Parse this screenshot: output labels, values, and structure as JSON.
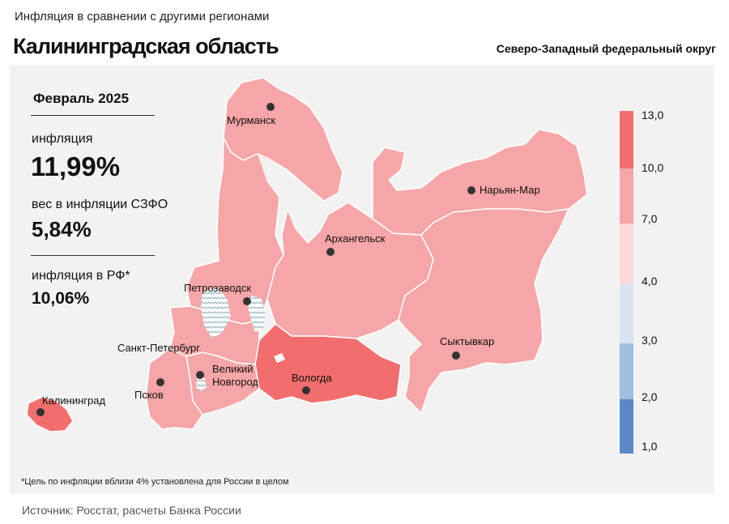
{
  "header": {
    "subtitle": "Инфляция  в сравнении  с другими  регионами",
    "title": "Калининградская область",
    "district": "Северо-Западный федеральный округ"
  },
  "info": {
    "period": "Февраль 2025",
    "inflation_label": "инфляция",
    "inflation_value": "11,99%",
    "weight_label": "вес в инфляции  СЗФО",
    "weight_value": "5,84%",
    "rf_label": "инфляция  в РФ*",
    "rf_value": "10,06%"
  },
  "legend": {
    "labels": [
      "13,0",
      "10,0",
      "7,0",
      "4,0",
      "3,0",
      "2,0",
      "1,0"
    ],
    "colors": [
      "#f26d6d",
      "#f6a6a8",
      "#fcd7dc",
      "#dae3f3",
      "#a3bde0",
      "#5b89c8"
    ]
  },
  "cities": {
    "murmansk": "Мурманск",
    "naryan_mar": "Нарьян-Мар",
    "arkhangelsk": "Архангельск",
    "petrozavodsk": "Петрозаводск",
    "spb": "Санкт-Петербург",
    "syktyvkar": "Сыктывкар",
    "novgorod_1": "Великий",
    "novgorod_2": "Новгород",
    "vologda": "Вологда",
    "pskov": "Псков",
    "kaliningrad": "Калининград"
  },
  "colors": {
    "band_10_13": "#f26d6d",
    "band_7_10": "#f6a6a8",
    "band_4_7": "#fcd7dc",
    "panel": "#f2f2f2"
  },
  "footnote": "*Цель по инфляции вблизи 4% установлена для России в целом",
  "source": "Источник:  Росстат,  расчеты  Банка  России"
}
